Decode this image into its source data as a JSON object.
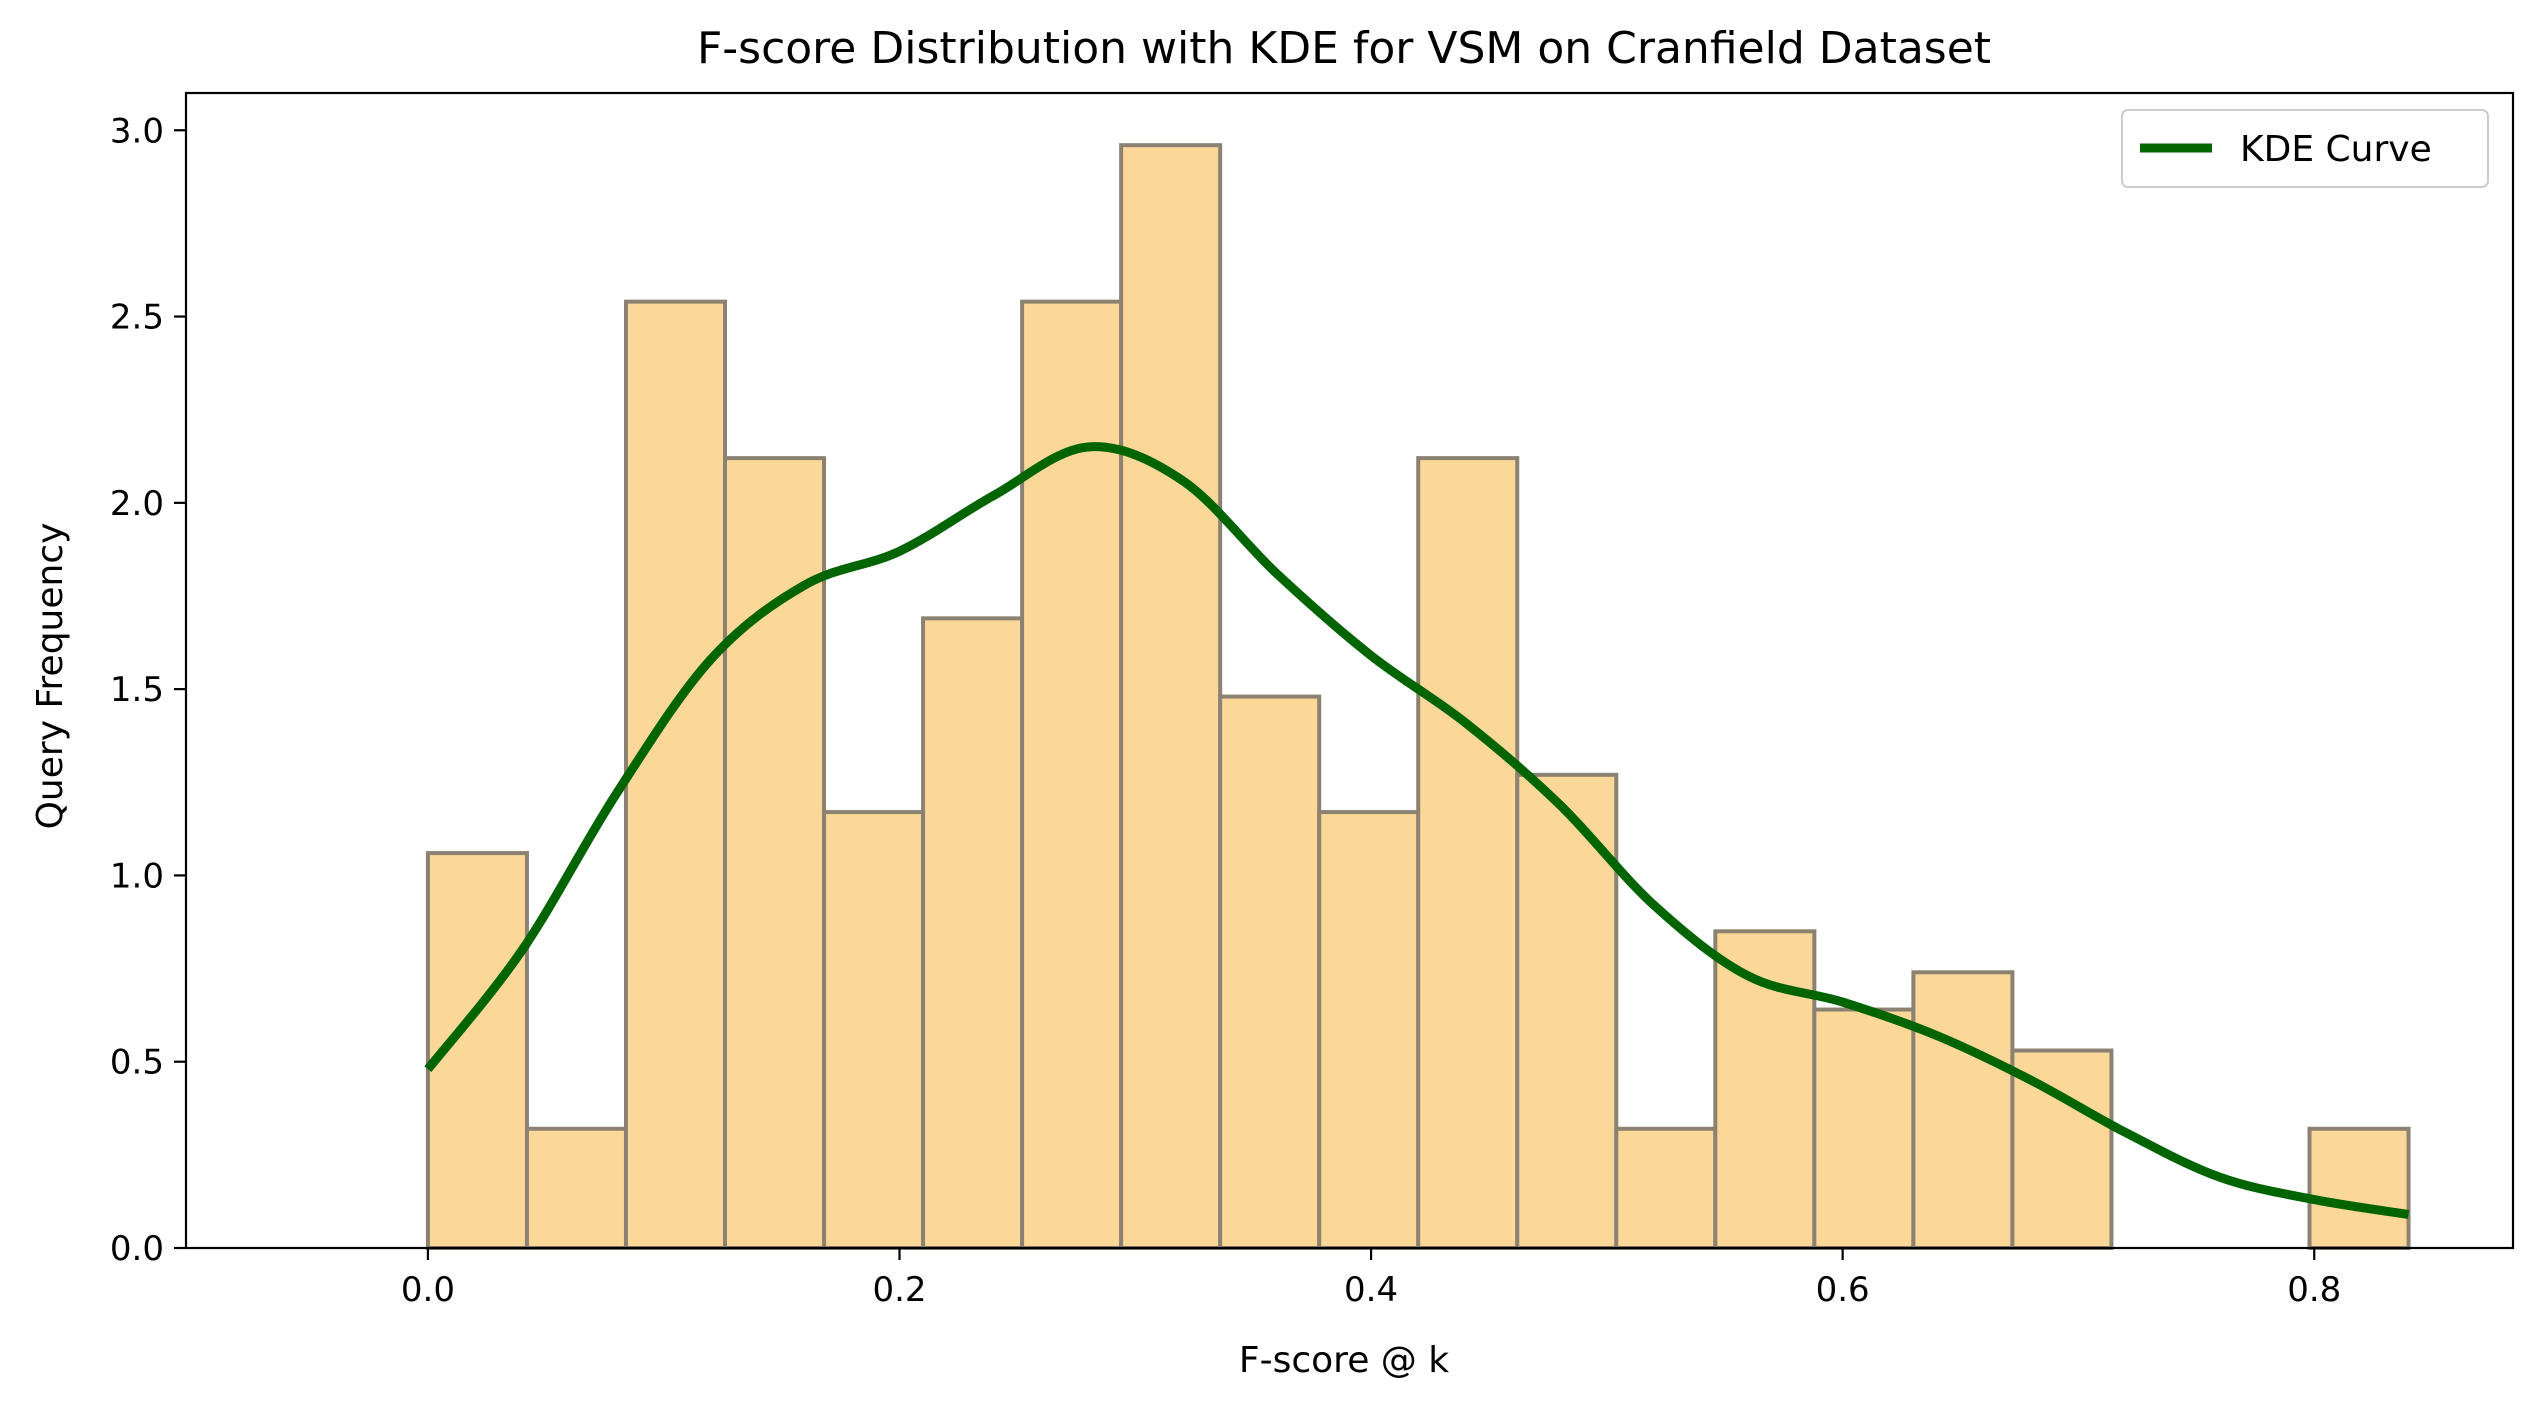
{
  "chart_data": {
    "type": "bar",
    "title": "F-score Distribution with KDE for VSM on Cranfield Dataset",
    "xlabel": "F-score @ k",
    "ylabel": "Query Frequency",
    "xlim": [
      -0.1026,
      0.8843
    ],
    "ylim": [
      0.0,
      3.1
    ],
    "grid": false,
    "legend_position": "top-right",
    "xticks": [
      0.0,
      0.2,
      0.4,
      0.6,
      0.8
    ],
    "xtick_labels": [
      "0.0",
      "0.2",
      "0.4",
      "0.6",
      "0.8"
    ],
    "yticks": [
      0.0,
      0.5,
      1.0,
      1.5,
      2.0,
      2.5,
      3.0
    ],
    "ytick_labels": [
      "0.0",
      "0.5",
      "1.0",
      "1.5",
      "2.0",
      "2.5",
      "3.0"
    ],
    "histogram": {
      "bin_edges": [
        0.0,
        0.042,
        0.084,
        0.126,
        0.168,
        0.21,
        0.252,
        0.294,
        0.336,
        0.378,
        0.42,
        0.462,
        0.504,
        0.546,
        0.588,
        0.63,
        0.672,
        0.714,
        0.756,
        0.798,
        0.84
      ],
      "values": [
        1.06,
        0.32,
        2.54,
        2.12,
        1.17,
        1.69,
        2.54,
        2.96,
        1.48,
        1.17,
        2.12,
        1.27,
        0.32,
        0.85,
        0.64,
        0.74,
        0.53,
        0.0,
        0.0,
        0.32
      ],
      "color": "#fcd898",
      "edge_color": "#8b8272"
    },
    "series": [
      {
        "name": "KDE Curve",
        "color": "#006400",
        "x": [
          0.0,
          0.04,
          0.08,
          0.12,
          0.16,
          0.2,
          0.24,
          0.28,
          0.32,
          0.36,
          0.4,
          0.44,
          0.48,
          0.52,
          0.56,
          0.6,
          0.64,
          0.68,
          0.72,
          0.76,
          0.8,
          0.84
        ],
        "y": [
          0.48,
          0.8,
          1.22,
          1.58,
          1.78,
          1.87,
          2.02,
          2.15,
          2.06,
          1.81,
          1.59,
          1.41,
          1.19,
          0.92,
          0.73,
          0.66,
          0.57,
          0.45,
          0.31,
          0.19,
          0.13,
          0.09
        ]
      }
    ]
  }
}
